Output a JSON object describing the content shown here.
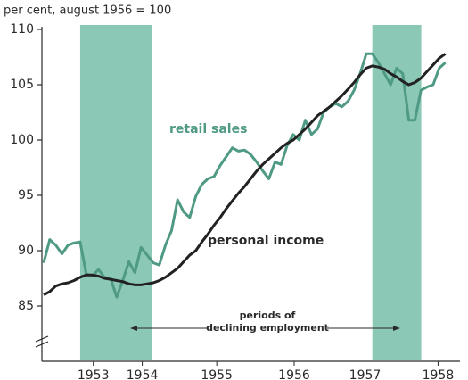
{
  "chart_data": {
    "type": "line",
    "y_label": "per cent, august 1956 = 100",
    "annotations": {
      "retail": "retail sales",
      "income": "personal income",
      "periods_line1": "periods of",
      "periods_line2": "declining employment"
    },
    "shaded": [
      [
        1953.5,
        1954.48
      ],
      [
        1957.5,
        1958.17
      ]
    ],
    "shade_color": "#8cc8b6",
    "x": [
      1953,
      1953.083,
      1953.167,
      1953.25,
      1953.333,
      1953.417,
      1953.5,
      1953.583,
      1953.667,
      1953.75,
      1953.833,
      1953.917,
      1954,
      1954.083,
      1954.167,
      1954.25,
      1954.333,
      1954.417,
      1954.5,
      1954.583,
      1954.667,
      1954.75,
      1954.833,
      1954.917,
      1955,
      1955.083,
      1955.167,
      1955.25,
      1955.333,
      1955.417,
      1955.5,
      1955.583,
      1955.667,
      1955.75,
      1955.833,
      1955.917,
      1956,
      1956.083,
      1956.167,
      1956.25,
      1956.333,
      1956.417,
      1956.5,
      1956.583,
      1956.667,
      1956.75,
      1956.833,
      1956.917,
      1957,
      1957.083,
      1957.167,
      1957.25,
      1957.333,
      1957.417,
      1957.5,
      1957.583,
      1957.667,
      1957.75,
      1957.833,
      1957.917,
      1958,
      1958.083,
      1958.167,
      1958.25,
      1958.333,
      1958.417,
      1958.5
    ],
    "series": [
      {
        "name": "retail sales",
        "color": "#4f9a84",
        "values": [
          88.9,
          91.0,
          90.5,
          89.7,
          90.5,
          90.7,
          90.8,
          87.9,
          87.7,
          88.3,
          87.6,
          87.5,
          85.8,
          87.3,
          89.0,
          88.0,
          90.3,
          89.6,
          88.9,
          88.7,
          90.5,
          91.8,
          94.6,
          93.5,
          93.0,
          94.9,
          96.0,
          96.5,
          96.7,
          97.7,
          98.5,
          99.3,
          99.0,
          99.1,
          98.7,
          98.0,
          97.2,
          96.5,
          98.0,
          97.8,
          99.5,
          100.5,
          100.0,
          101.8,
          100.5,
          101.0,
          102.5,
          103.0,
          103.3,
          103.0,
          103.5,
          104.5,
          106.0,
          107.8,
          107.8,
          107.0,
          106.0,
          105.0,
          106.5,
          106.0,
          101.8,
          101.8,
          104.5,
          104.8,
          105.0,
          106.5,
          107.0
        ]
      },
      {
        "name": "personal income",
        "color": "#222222",
        "values": [
          86.0,
          86.3,
          86.8,
          87.0,
          87.1,
          87.3,
          87.6,
          87.8,
          87.8,
          87.7,
          87.5,
          87.4,
          87.3,
          87.2,
          87.0,
          86.9,
          86.9,
          87.0,
          87.1,
          87.3,
          87.6,
          88.0,
          88.4,
          89.0,
          89.6,
          90.0,
          90.8,
          91.5,
          92.3,
          93.0,
          93.8,
          94.5,
          95.2,
          95.8,
          96.5,
          97.2,
          97.8,
          98.3,
          98.8,
          99.3,
          99.7,
          100.0,
          100.5,
          101.0,
          101.6,
          102.2,
          102.6,
          103.0,
          103.5,
          104.0,
          104.6,
          105.2,
          105.9,
          106.5,
          106.7,
          106.6,
          106.4,
          106.0,
          105.7,
          105.3,
          105.0,
          105.2,
          105.6,
          106.2,
          106.8,
          107.4,
          107.8
        ]
      }
    ],
    "xlim": [
      1952.976,
      1958.7
    ],
    "ylim": [
      80,
      110
    ],
    "yticks": [
      85,
      90,
      95,
      100,
      105,
      110
    ],
    "xticks": [
      {
        "value": 1953.68,
        "label": "1953"
      },
      {
        "value": 1954.35,
        "label": "1954"
      },
      {
        "value": 1955.37,
        "label": "1955"
      },
      {
        "value": 1956.43,
        "label": "1956"
      },
      {
        "value": 1957.4,
        "label": "1957"
      },
      {
        "value": 1958.4,
        "label": "1958"
      }
    ]
  }
}
